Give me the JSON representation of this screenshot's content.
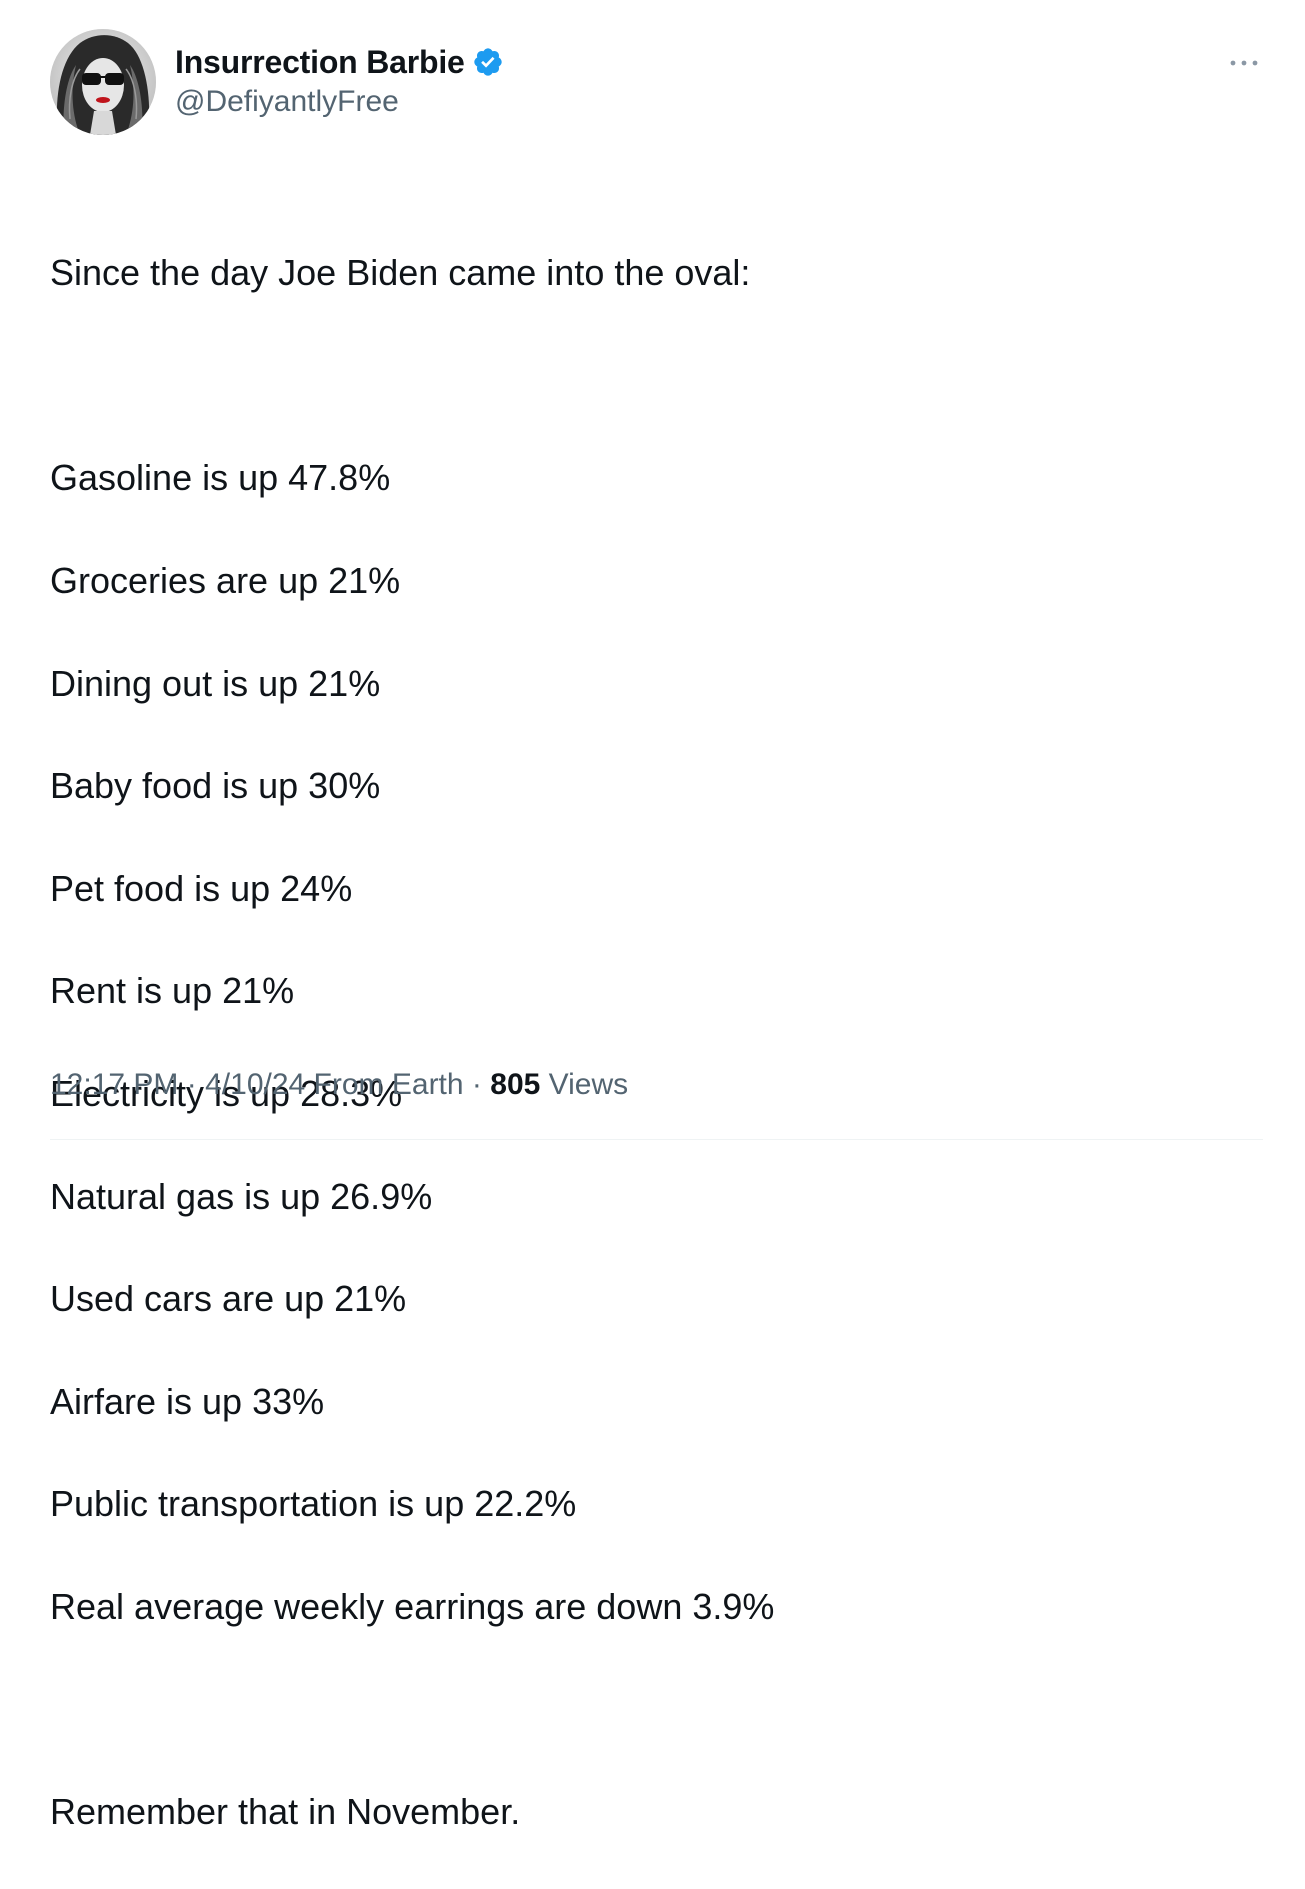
{
  "author": {
    "display_name": "Insurrection Barbie",
    "handle": "@DefiyantlyFree",
    "verified": true,
    "verified_color": "#1d9bf0",
    "avatar_icon": "avatar-portrait"
  },
  "more_icon": "ellipsis-icon",
  "tweet": {
    "intro": "Since the day Joe Biden came into the oval:",
    "lines": [
      "Gasoline is up 47.8%",
      "Groceries are up 21%",
      "Dining out is up 21%",
      "Baby food is up 30%",
      "Pet food is up 24%",
      "Rent is up 21%",
      "Electricity is up 28.3%",
      "Natural gas is up 26.9%",
      "Used cars are up 21%",
      "Airfare is up 33%",
      "Public transportation is up 22.2%",
      "Real average weekly earrings are down 3.9%"
    ],
    "closing": "Remember that in November."
  },
  "meta": {
    "time": "12:17 PM",
    "separator": "·",
    "date": "4/10/24",
    "source": "From Earth",
    "views_count": "805",
    "views_label": "Views"
  },
  "colors": {
    "text_primary": "#0f1419",
    "text_secondary": "#536471"
  }
}
